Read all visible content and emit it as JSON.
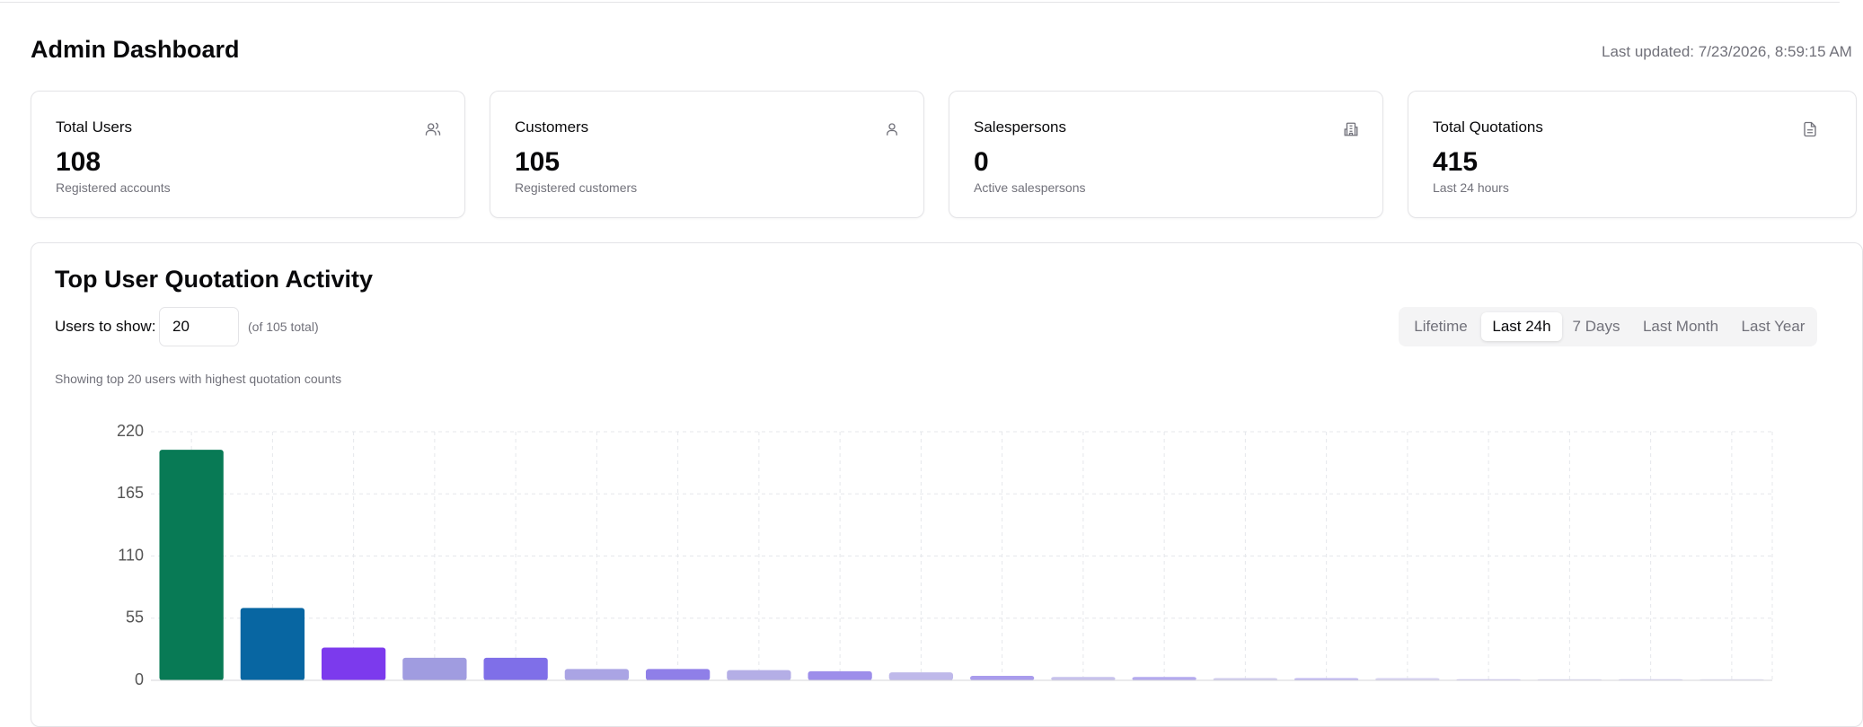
{
  "header": {
    "title": "Admin Dashboard",
    "last_updated": "Last updated: 7/23/2026, 8:59:15 AM"
  },
  "cards": [
    {
      "label": "Total Users",
      "value": 108,
      "caption": "Registered accounts"
    },
    {
      "label": "Customers",
      "value": 105,
      "caption": "Registered customers"
    },
    {
      "label": "Salespersons",
      "value": 0,
      "caption": "Active salespersons"
    },
    {
      "label": "Total Quotations",
      "value": 415,
      "caption": "Last 24 hours"
    }
  ],
  "activity": {
    "title": "Top User Quotation Activity",
    "users_label": "Users to show:",
    "users_value": 20,
    "total_note": "(of 105 total)",
    "tabs": [
      "Lifetime",
      "Last 24h",
      "7 Days",
      "Last Month",
      "Last Year"
    ],
    "active_tab": "Last 24h",
    "note": "Showing top 20 users with highest quotation counts"
  },
  "chart_data": {
    "type": "bar",
    "categories": [
      null,
      null,
      null,
      null,
      null,
      null,
      null,
      null,
      null,
      null,
      null,
      null,
      null,
      null,
      null,
      null,
      null,
      null,
      null,
      null
    ],
    "values": [
      204,
      64,
      29,
      20,
      20,
      10,
      10,
      9,
      8,
      7,
      4,
      3,
      3,
      2,
      2,
      2,
      1,
      1,
      1,
      1
    ],
    "colors": [
      "#087a55",
      "#0866a2",
      "#7c3aed",
      "#a09ce0",
      "#7f6fe8",
      "#aaa4e4",
      "#8f7fe8",
      "#b4aee6",
      "#9d8eea",
      "#bfb9ea",
      "#a99cec",
      "#c7c2ec",
      "#b4aaee",
      "#d0ccee",
      "#c0b8f0",
      "#d6d2f0",
      "#cbc4f2",
      "#ddd9f2",
      "#d5d0f4",
      "#e2dff4"
    ],
    "ylim": [
      0,
      220
    ],
    "yticks": [
      0,
      55,
      110,
      165,
      220
    ],
    "grid": true
  }
}
